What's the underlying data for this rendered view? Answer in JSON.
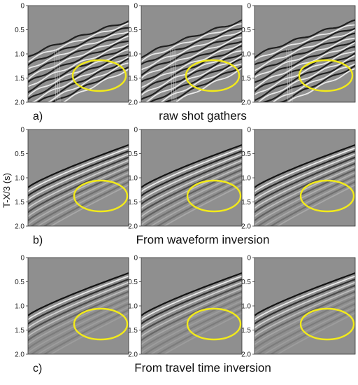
{
  "figure": {
    "y_axis_label": "T-X/3 (s)",
    "y_ticks": [
      "0",
      "0.5",
      "1.0",
      "1.5",
      "2.0"
    ],
    "highlight_color": "#f2ea1a",
    "panel_background": "#8f8f8f",
    "rows": [
      {
        "label": "a)",
        "caption": "raw shot gathers",
        "style": "raw"
      },
      {
        "label": "b)",
        "caption": "From waveform inversion",
        "style": "smooth"
      },
      {
        "label": "c)",
        "caption": "From travel time inversion",
        "style": "clean"
      }
    ]
  }
}
